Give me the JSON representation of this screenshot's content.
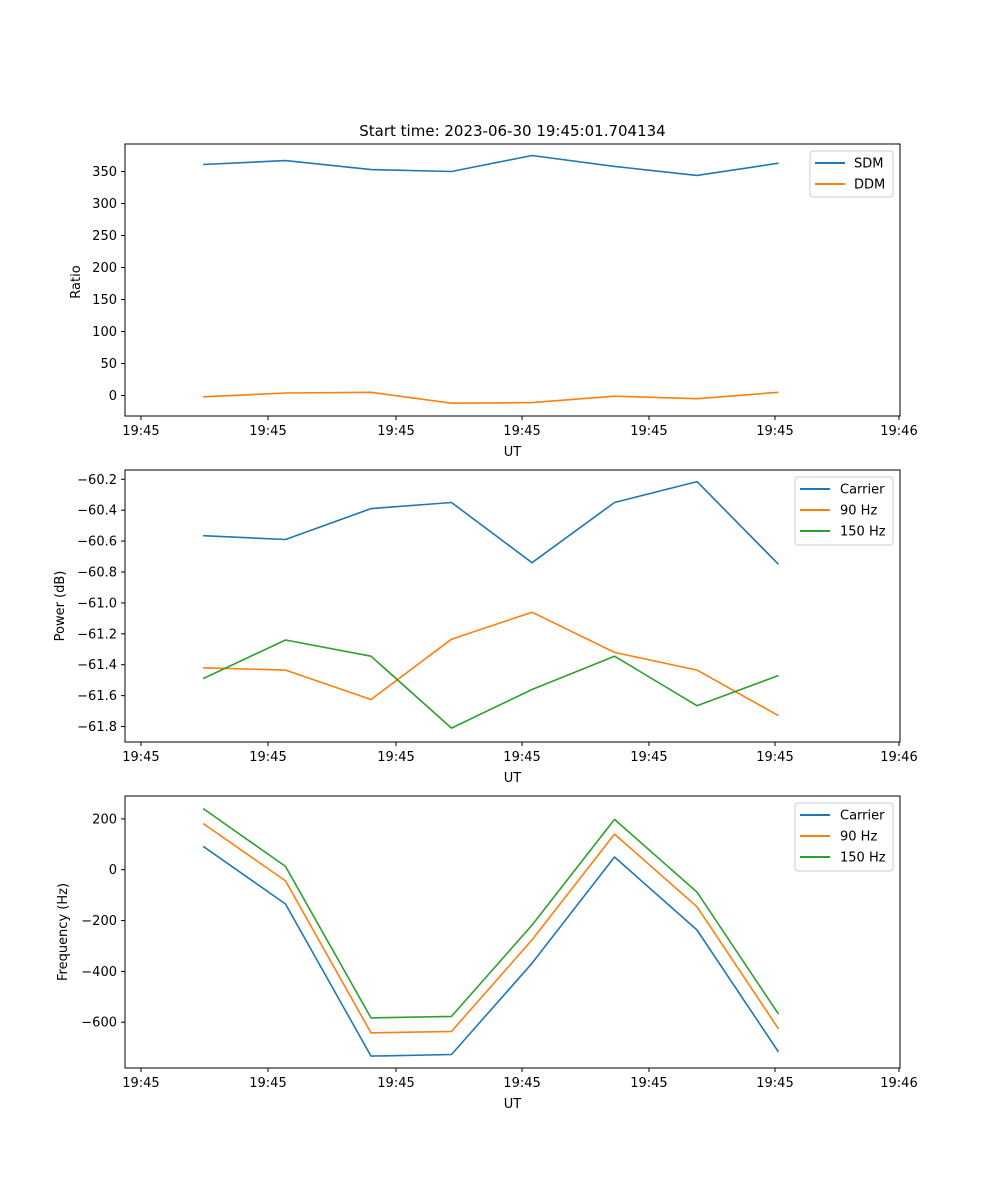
{
  "chart_data": [
    {
      "type": "line",
      "title": "Start time: 2023-06-30 19:45:01.704134",
      "xlabel": "UT",
      "ylabel": "Ratio",
      "xtick_labels": [
        "19:45",
        "19:45",
        "19:45",
        "19:45",
        "19:45",
        "19:45",
        "19:46"
      ],
      "ytick_labels": [
        "0",
        "50",
        "100",
        "150",
        "200",
        "250",
        "300",
        "350"
      ],
      "ylim": [
        -32,
        393
      ],
      "grid": false,
      "legend_position": "top-right",
      "series": [
        {
          "name": "SDM",
          "color": "#1f77b4",
          "values": [
            361,
            367,
            353,
            350,
            375,
            358,
            344,
            363
          ]
        },
        {
          "name": "DDM",
          "color": "#ff7f0e",
          "values": [
            -2,
            4,
            5,
            -12,
            -11,
            -1,
            -5,
            5
          ]
        }
      ]
    },
    {
      "type": "line",
      "title": "",
      "xlabel": "UT",
      "ylabel": "Power (dB)",
      "xtick_labels": [
        "19:45",
        "19:45",
        "19:45",
        "19:45",
        "19:45",
        "19:45",
        "19:46"
      ],
      "ytick_labels": [
        "−61.8",
        "−61.6",
        "−61.4",
        "−61.2",
        "−61.0",
        "−60.8",
        "−60.6",
        "−60.4",
        "−60.2"
      ],
      "ylim": [
        -61.9,
        -60.14
      ],
      "grid": false,
      "legend_position": "top-right",
      "series": [
        {
          "name": "Carrier",
          "color": "#1f77b4",
          "values": [
            -60.565,
            -60.59,
            -60.39,
            -60.35,
            -60.74,
            -60.35,
            -60.215,
            -60.75
          ]
        },
        {
          "name": "90 Hz",
          "color": "#ff7f0e",
          "values": [
            -61.42,
            -61.435,
            -61.625,
            -61.235,
            -61.06,
            -61.32,
            -61.435,
            -61.73
          ]
        },
        {
          "name": "150 Hz",
          "color": "#2ca02c",
          "values": [
            -61.49,
            -61.24,
            -61.345,
            -61.81,
            -61.56,
            -61.345,
            -61.665,
            -61.47
          ]
        }
      ]
    },
    {
      "type": "line",
      "title": "",
      "xlabel": "UT",
      "ylabel": "Frequency (Hz)",
      "xtick_labels": [
        "19:45",
        "19:45",
        "19:45",
        "19:45",
        "19:45",
        "19:45",
        "19:46"
      ],
      "ytick_labels": [
        "−600",
        "−400",
        "−200",
        "0",
        "200"
      ],
      "ylim": [
        -780,
        290
      ],
      "grid": false,
      "legend_position": "top-right",
      "series": [
        {
          "name": "Carrier",
          "color": "#1f77b4",
          "values": [
            92,
            -135,
            -733,
            -727,
            -368,
            50,
            -237,
            -717
          ]
        },
        {
          "name": "90 Hz",
          "color": "#ff7f0e",
          "values": [
            182,
            -44,
            -642,
            -636,
            -276,
            140,
            -146,
            -626
          ]
        },
        {
          "name": "150 Hz",
          "color": "#2ca02c",
          "values": [
            241,
            13,
            -583,
            -577,
            -218,
            198,
            -88,
            -568
          ]
        }
      ]
    }
  ]
}
